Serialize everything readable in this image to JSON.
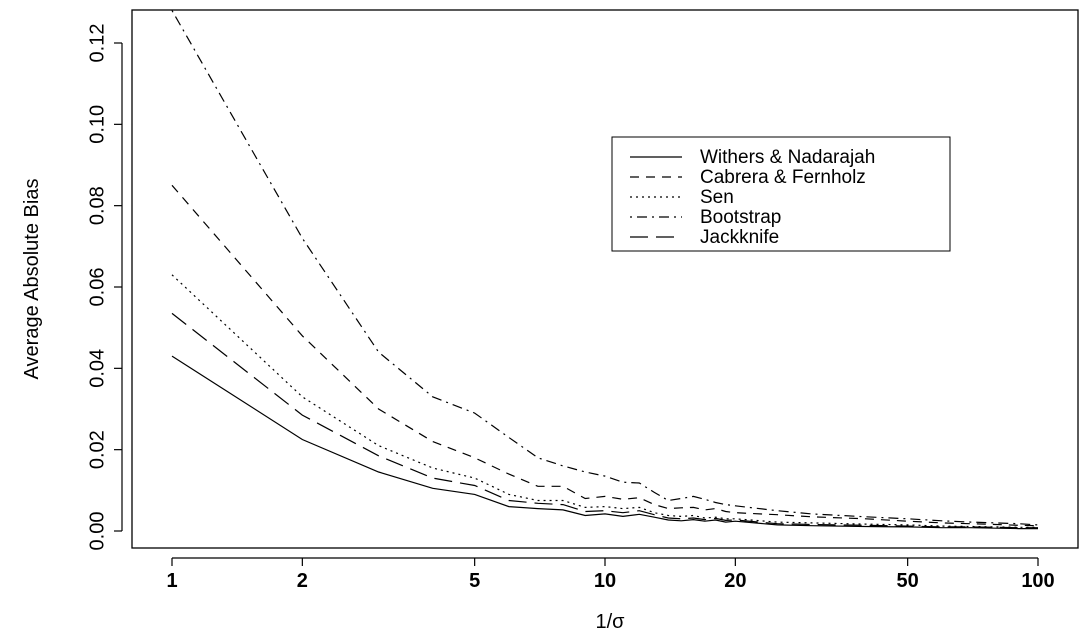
{
  "chart_data": {
    "type": "line",
    "title": "",
    "xlabel": "1/σ",
    "ylabel": "Average Absolute Bias",
    "x_scale": "log",
    "xlim": [
      1,
      100
    ],
    "ylim": [
      0,
      0.12
    ],
    "x_ticks": [
      1,
      2,
      5,
      10,
      20,
      50,
      100
    ],
    "x_tick_labels": [
      "1",
      "2",
      "5",
      "10",
      "20",
      "50",
      "100"
    ],
    "y_ticks": [
      0,
      0.02,
      0.04,
      0.06,
      0.08,
      0.1,
      0.12
    ],
    "y_tick_labels": [
      "0.00",
      "0.02",
      "0.04",
      "0.06",
      "0.08",
      "0.10",
      "0.12"
    ],
    "grid": false,
    "legend_position": "upper-right",
    "x": [
      1,
      2,
      3,
      4,
      5,
      6,
      7,
      8,
      9,
      10,
      11,
      12,
      13,
      14,
      15,
      16,
      17,
      18,
      19,
      20,
      25,
      30,
      40,
      50,
      60,
      70,
      80,
      90,
      100
    ],
    "series": [
      {
        "name": "Withers & Nadarajah",
        "dash": "solid",
        "values": [
          0.043,
          0.0225,
          0.0145,
          0.0105,
          0.009,
          0.006,
          0.0055,
          0.0052,
          0.0038,
          0.0042,
          0.0036,
          0.0041,
          0.0034,
          0.0027,
          0.0025,
          0.0028,
          0.0024,
          0.0027,
          0.0022,
          0.0024,
          0.0015,
          0.0013,
          0.0011,
          0.001,
          0.0008,
          0.0008,
          0.0007,
          0.0006,
          0.0006
        ]
      },
      {
        "name": "Cabrera & Fernholz",
        "dash": "dashed",
        "values": [
          0.085,
          0.048,
          0.03,
          0.022,
          0.018,
          0.014,
          0.011,
          0.011,
          0.008,
          0.0085,
          0.0078,
          0.0082,
          0.0065,
          0.0055,
          0.0057,
          0.0058,
          0.0052,
          0.0055,
          0.0048,
          0.0045,
          0.004,
          0.0035,
          0.003,
          0.0024,
          0.002,
          0.0018,
          0.0016,
          0.0014,
          0.0013
        ]
      },
      {
        "name": "Sen",
        "dash": "dotted",
        "values": [
          0.063,
          0.033,
          0.021,
          0.0155,
          0.013,
          0.009,
          0.0075,
          0.0075,
          0.0058,
          0.006,
          0.0055,
          0.0058,
          0.0045,
          0.0038,
          0.0036,
          0.0038,
          0.0032,
          0.0034,
          0.003,
          0.003,
          0.0022,
          0.002,
          0.0017,
          0.0015,
          0.0012,
          0.0011,
          0.001,
          0.0009,
          0.0009
        ]
      },
      {
        "name": "Bootstrap",
        "dash": "dotdash",
        "values": [
          0.128,
          0.072,
          0.044,
          0.033,
          0.029,
          0.023,
          0.018,
          0.016,
          0.0145,
          0.0135,
          0.012,
          0.0118,
          0.0095,
          0.0075,
          0.008,
          0.0085,
          0.0078,
          0.007,
          0.0065,
          0.0062,
          0.005,
          0.0042,
          0.0035,
          0.003,
          0.0025,
          0.0022,
          0.002,
          0.0018,
          0.0015
        ]
      },
      {
        "name": "Jackknife",
        "dash": "longdash",
        "values": [
          0.0535,
          0.0285,
          0.0185,
          0.013,
          0.0112,
          0.0075,
          0.0068,
          0.0065,
          0.0048,
          0.005,
          0.0045,
          0.005,
          0.004,
          0.0032,
          0.003,
          0.0032,
          0.0028,
          0.0031,
          0.0026,
          0.0027,
          0.0018,
          0.0016,
          0.0014,
          0.0012,
          0.001,
          0.001,
          0.0009,
          0.0008,
          0.0008
        ]
      }
    ]
  },
  "colors": {
    "line": "#000000",
    "background": "#ffffff"
  }
}
